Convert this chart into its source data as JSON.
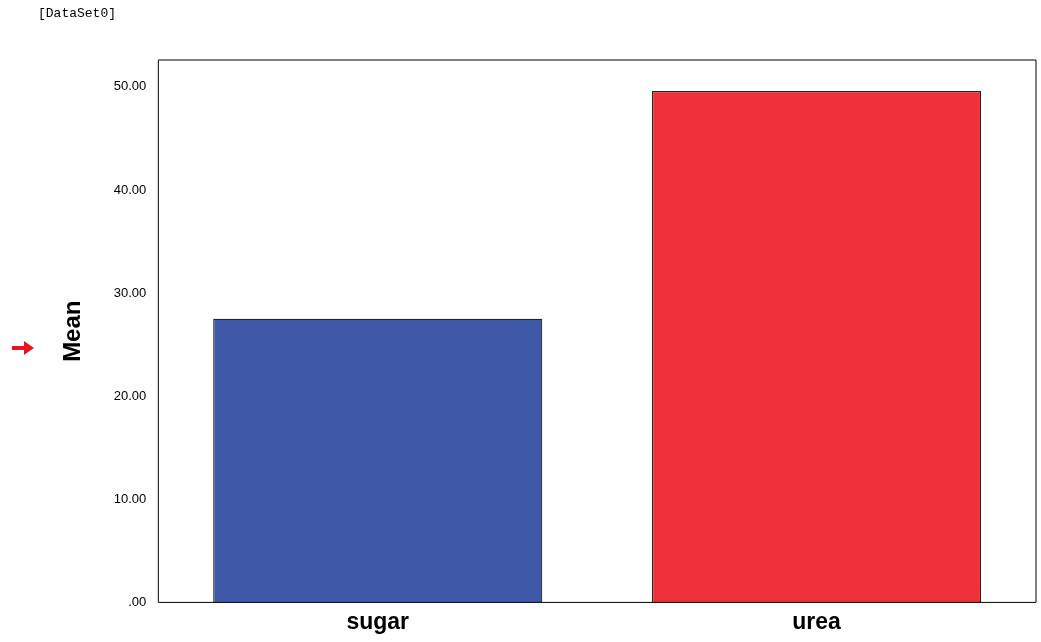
{
  "chart_data": {
    "type": "bar",
    "ylabel": "Mean",
    "annotations": [
      "[DataSet0]"
    ],
    "categories": [
      "sugar",
      "urea"
    ],
    "values": [
      27.5,
      49.6
    ],
    "colors": [
      "#3f58a8",
      "#ef323a"
    ],
    "ylim": [
      0,
      52.6
    ],
    "yticks": [
      {
        "value": 0,
        "label": ".00"
      },
      {
        "value": 10,
        "label": "10.00"
      },
      {
        "value": 20,
        "label": "20.00"
      },
      {
        "value": 30,
        "label": "30.00"
      },
      {
        "value": 40,
        "label": "40.00"
      },
      {
        "value": 50,
        "label": "50.00"
      }
    ],
    "grid": false,
    "legend": false
  }
}
